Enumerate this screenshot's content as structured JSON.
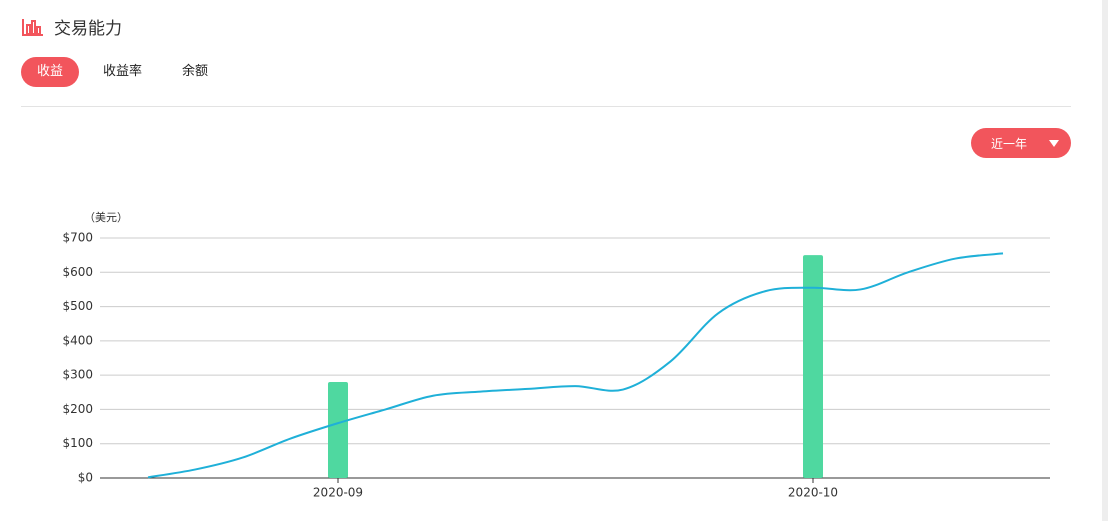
{
  "header": {
    "title": "交易能力"
  },
  "tabs": [
    "收益",
    "收益率",
    "余额"
  ],
  "dropdown": {
    "label": "近一年"
  },
  "chart_data": {
    "type": "bar",
    "y_label": "（美元）",
    "categories": [
      null,
      null,
      null,
      null,
      "2020-09",
      null,
      null,
      null,
      null,
      null,
      null,
      null,
      null,
      null,
      "2020-10",
      null,
      null,
      null,
      null
    ],
    "series": [
      {
        "type": "bar",
        "color": "#4fd8a0",
        "values": [
          null,
          null,
          null,
          null,
          280,
          null,
          null,
          null,
          null,
          null,
          null,
          null,
          null,
          null,
          650,
          null,
          null,
          null,
          null
        ]
      },
      {
        "type": "line",
        "color": "#1fb0d8",
        "values": [
          2,
          25,
          60,
          115,
          160,
          200,
          240,
          252,
          260,
          268,
          258,
          340,
          480,
          545,
          555,
          550,
          600,
          640,
          655
        ]
      }
    ],
    "ylim": [
      0,
      700
    ],
    "yticks": [
      {
        "value": 0,
        "label": "$0"
      },
      {
        "value": 100,
        "label": "$100"
      },
      {
        "value": 200,
        "label": "$200"
      },
      {
        "value": 300,
        "label": "$300"
      },
      {
        "value": 400,
        "label": "$400"
      },
      {
        "value": 500,
        "label": "$500"
      },
      {
        "value": 600,
        "label": "$600"
      },
      {
        "value": 700,
        "label": "$700"
      }
    ],
    "grid": true
  }
}
